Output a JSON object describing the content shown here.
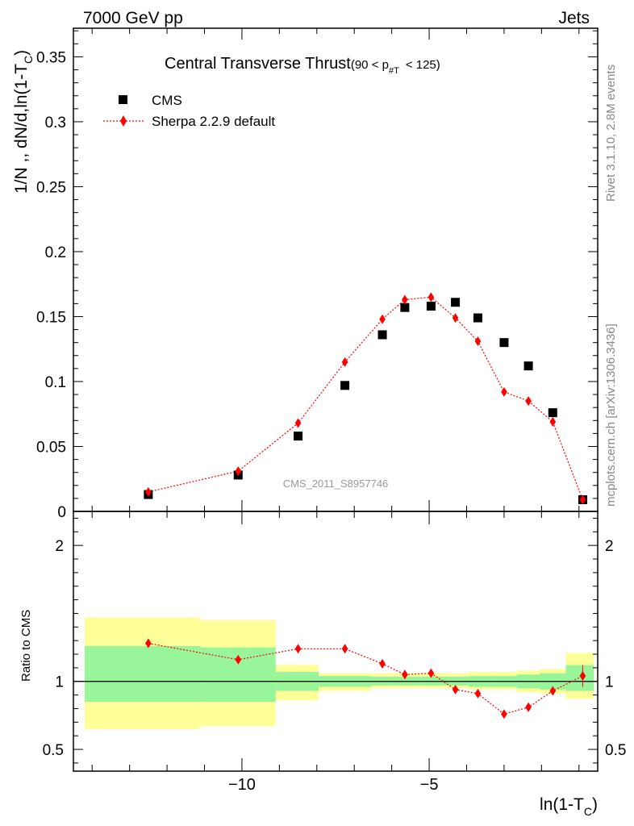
{
  "header": {
    "left": "7000 GeV pp",
    "right": "Jets"
  },
  "side_labels": {
    "rivet": "Rivet 3.1.10,  2.8M events",
    "mcplots": "mcplots.cern.ch [arXiv:1306.3436]"
  },
  "colors": {
    "data": "#000000",
    "mc": "#ff0000",
    "band_inner": "#99f599",
    "band_outer": "#ffff99"
  },
  "chart_data": [
    {
      "type": "scatter",
      "title": "Central Transverse Thrust",
      "title_cut": "(90 < p",
      "title_sub": "#T",
      "title_cut_end": "< 125)",
      "watermark": "CMS_2011_S8957746",
      "ylabel": "1/N ,, dN/d,ln(1-T",
      "ylabel_sub": "C",
      "ylabel_end": ")",
      "xlim": [
        -14.5,
        -0.5
      ],
      "ylim": [
        0,
        0.372
      ],
      "yticks": [
        0,
        0.05,
        0.1,
        0.15,
        0.2,
        0.25,
        0.3,
        0.35
      ],
      "ytick_labels": [
        "0",
        "0.05",
        "0.1",
        "0.15",
        "0.2",
        "0.25",
        "0.3",
        "0.35"
      ],
      "legend_position": "top-left",
      "series": [
        {
          "name": "CMS",
          "marker": "square",
          "x": [
            -12.5,
            -10.1,
            -8.5,
            -7.25,
            -6.25,
            -5.65,
            -4.95,
            -4.3,
            -3.7,
            -3.0,
            -2.35,
            -1.7,
            -0.9
          ],
          "y": [
            0.013,
            0.028,
            0.058,
            0.097,
            0.136,
            0.157,
            0.158,
            0.161,
            0.149,
            0.13,
            0.112,
            0.076,
            0.009
          ]
        },
        {
          "name": "Sherpa 2.2.9 default",
          "marker": "diamond",
          "x": [
            -12.5,
            -10.1,
            -8.5,
            -7.25,
            -6.25,
            -5.65,
            -4.95,
            -4.3,
            -3.7,
            -3.0,
            -2.35,
            -1.7,
            -0.9
          ],
          "y": [
            0.015,
            0.031,
            0.068,
            0.115,
            0.148,
            0.163,
            0.165,
            0.149,
            0.131,
            0.092,
            0.085,
            0.069,
            0.009
          ]
        }
      ]
    },
    {
      "type": "scatter",
      "ylabel": "Ratio to CMS",
      "xlabel": "ln(1-T",
      "xlabel_sub": "C",
      "xlabel_end": ")",
      "xlim": [
        -14.5,
        -0.5
      ],
      "ylim": [
        0.34,
        2.25
      ],
      "xticks": [
        -10,
        -5
      ],
      "xtick_labels": [
        "−10",
        "−5"
      ],
      "yticks": [
        0.5,
        1,
        2
      ],
      "ytick_labels": [
        "0.5",
        "1",
        "2"
      ],
      "bands": [
        {
          "x0": -14.2,
          "x1": -11.1,
          "inner": [
            0.85,
            1.26
          ],
          "outer": [
            0.65,
            1.47
          ]
        },
        {
          "x0": -11.1,
          "x1": -9.1,
          "inner": [
            0.85,
            1.25
          ],
          "outer": [
            0.67,
            1.45
          ]
        },
        {
          "x0": -9.1,
          "x1": -7.95,
          "inner": [
            0.93,
            1.07
          ],
          "outer": [
            0.86,
            1.12
          ]
        },
        {
          "x0": -7.95,
          "x1": -6.55,
          "inner": [
            0.96,
            1.04
          ],
          "outer": [
            0.93,
            1.06
          ]
        },
        {
          "x0": -6.55,
          "x1": -5.95,
          "inner": [
            0.97,
            1.035
          ],
          "outer": [
            0.95,
            1.06
          ]
        },
        {
          "x0": -5.95,
          "x1": -5.25,
          "inner": [
            0.97,
            1.035
          ],
          "outer": [
            0.95,
            1.06
          ]
        },
        {
          "x0": -5.25,
          "x1": -4.65,
          "inner": [
            0.97,
            1.035
          ],
          "outer": [
            0.95,
            1.06
          ]
        },
        {
          "x0": -4.65,
          "x1": -3.95,
          "inner": [
            0.97,
            1.035
          ],
          "outer": [
            0.95,
            1.06
          ]
        },
        {
          "x0": -3.95,
          "x1": -3.35,
          "inner": [
            0.96,
            1.04
          ],
          "outer": [
            0.94,
            1.07
          ]
        },
        {
          "x0": -3.35,
          "x1": -2.65,
          "inner": [
            0.96,
            1.04
          ],
          "outer": [
            0.94,
            1.07
          ]
        },
        {
          "x0": -2.65,
          "x1": -2.05,
          "inner": [
            0.95,
            1.05
          ],
          "outer": [
            0.92,
            1.08
          ]
        },
        {
          "x0": -2.05,
          "x1": -1.35,
          "inner": [
            0.94,
            1.06
          ],
          "outer": [
            0.91,
            1.09
          ]
        },
        {
          "x0": -1.35,
          "x1": -0.6,
          "inner": [
            0.93,
            1.12
          ],
          "outer": [
            0.87,
            1.21
          ]
        }
      ],
      "series": [
        {
          "name": "Sherpa 2.2.9 default",
          "x": [
            -12.5,
            -10.1,
            -8.5,
            -7.25,
            -6.25,
            -5.65,
            -4.95,
            -4.3,
            -3.7,
            -3.0,
            -2.35,
            -1.7,
            -0.9
          ],
          "y": [
            1.28,
            1.16,
            1.24,
            1.24,
            1.13,
            1.05,
            1.06,
            0.94,
            0.91,
            0.76,
            0.81,
            0.93,
            1.04
          ],
          "yerr": [
            0.03,
            0.02,
            0.02,
            0.02,
            0.02,
            0.02,
            0.02,
            0.02,
            0.02,
            0.02,
            0.02,
            0.02,
            0.08
          ]
        }
      ]
    }
  ]
}
